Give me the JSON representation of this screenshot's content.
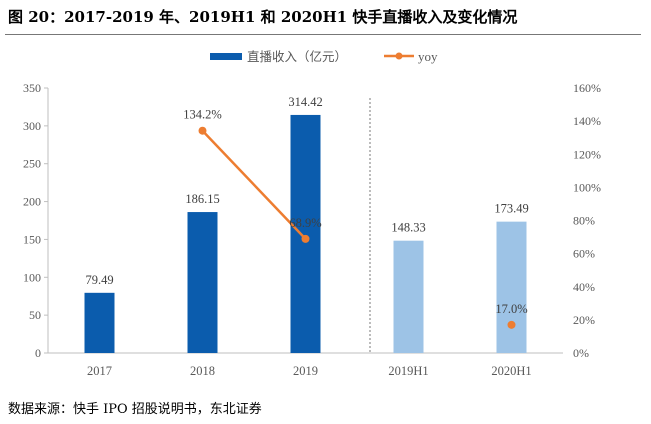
{
  "title": "图 20：2017-2019 年、2019H1 和 2020H1 快手直播收入及变化情况",
  "source": "数据来源：快手 IPO 招股说明书，东北证券",
  "chart_data": {
    "type": "bar+line",
    "categories": [
      "2017",
      "2018",
      "2019",
      "2019H1",
      "2020H1"
    ],
    "series": [
      {
        "name": "直播收入（亿元）",
        "type": "bar",
        "axis": "left",
        "values": [
          79.49,
          186.15,
          314.42,
          148.33,
          173.49
        ],
        "labels": [
          "79.49",
          "186.15",
          "314.42",
          "148.33",
          "173.49"
        ],
        "colors": [
          "#0B5CAD",
          "#0B5CAD",
          "#0B5CAD",
          "#9DC3E6",
          "#9DC3E6"
        ]
      },
      {
        "name": "yoy",
        "type": "line",
        "axis": "right",
        "values": [
          null,
          134.2,
          68.9,
          null,
          17.0
        ],
        "labels": [
          "",
          "134.2%",
          "68.9%",
          "",
          "17.0%"
        ],
        "color": "#ED7D31"
      }
    ],
    "ylim_left": [
      0,
      350
    ],
    "yticks_left": [
      "0",
      "50",
      "100",
      "150",
      "200",
      "250",
      "300",
      "350"
    ],
    "ylim_right": [
      0,
      160
    ],
    "yticks_right": [
      "0%",
      "20%",
      "40%",
      "60%",
      "80%",
      "100%",
      "120%",
      "140%",
      "160%"
    ],
    "legend": "top",
    "grid": false
  }
}
